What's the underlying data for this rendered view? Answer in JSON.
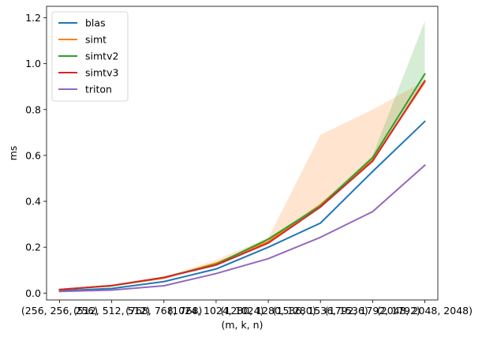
{
  "chart_data": {
    "type": "line",
    "title": "",
    "xlabel": "(m, k, n)",
    "ylabel": "ms",
    "categories": [
      "(256, 256, 256)",
      "(512, 512, 512)",
      "(768, 768, 768)",
      "(1024, 1024, 1024)",
      "(1280, 1280, 1280)",
      "(1536, 1536, 1536)",
      "(1792, 1792, 1792)",
      "(2048, 2048, 2048)"
    ],
    "ylim": [
      -0.03,
      1.25
    ],
    "yticks": [
      0.0,
      0.2,
      0.4,
      0.6,
      0.8,
      1.0,
      1.2
    ],
    "ytick_labels": [
      "0.0",
      "0.2",
      "0.4",
      "0.6",
      "0.8",
      "1.0",
      "1.2"
    ],
    "grid": false,
    "legend_position": "top-left",
    "series": [
      {
        "name": "blas",
        "color": "#1f77b4",
        "values": [
          0.01,
          0.02,
          0.05,
          0.105,
          0.2,
          0.305,
          0.53,
          0.748
        ]
      },
      {
        "name": "simt",
        "color": "#ff7f0e",
        "values": [
          0.015,
          0.032,
          0.065,
          0.13,
          0.225,
          0.385,
          0.58,
          0.92
        ],
        "band_lower": [
          0.013,
          0.03,
          0.062,
          0.125,
          0.22,
          0.375,
          0.57,
          0.91
        ],
        "band_upper": [
          0.017,
          0.036,
          0.07,
          0.145,
          0.24,
          0.69,
          0.8,
          0.925
        ]
      },
      {
        "name": "simtv2",
        "color": "#2ca02c",
        "values": [
          0.015,
          0.032,
          0.068,
          0.125,
          0.235,
          0.38,
          0.59,
          0.955
        ],
        "band_lower": [
          0.013,
          0.03,
          0.064,
          0.12,
          0.23,
          0.37,
          0.575,
          0.92
        ],
        "band_upper": [
          0.017,
          0.035,
          0.072,
          0.13,
          0.24,
          0.39,
          0.6,
          1.185
        ]
      },
      {
        "name": "simtv3",
        "color": "#d62728",
        "values": [
          0.015,
          0.033,
          0.068,
          0.122,
          0.218,
          0.375,
          0.575,
          0.925
        ]
      },
      {
        "name": "triton",
        "color": "#9467bd",
        "values": [
          0.007,
          0.013,
          0.032,
          0.085,
          0.15,
          0.243,
          0.355,
          0.557
        ]
      }
    ]
  }
}
